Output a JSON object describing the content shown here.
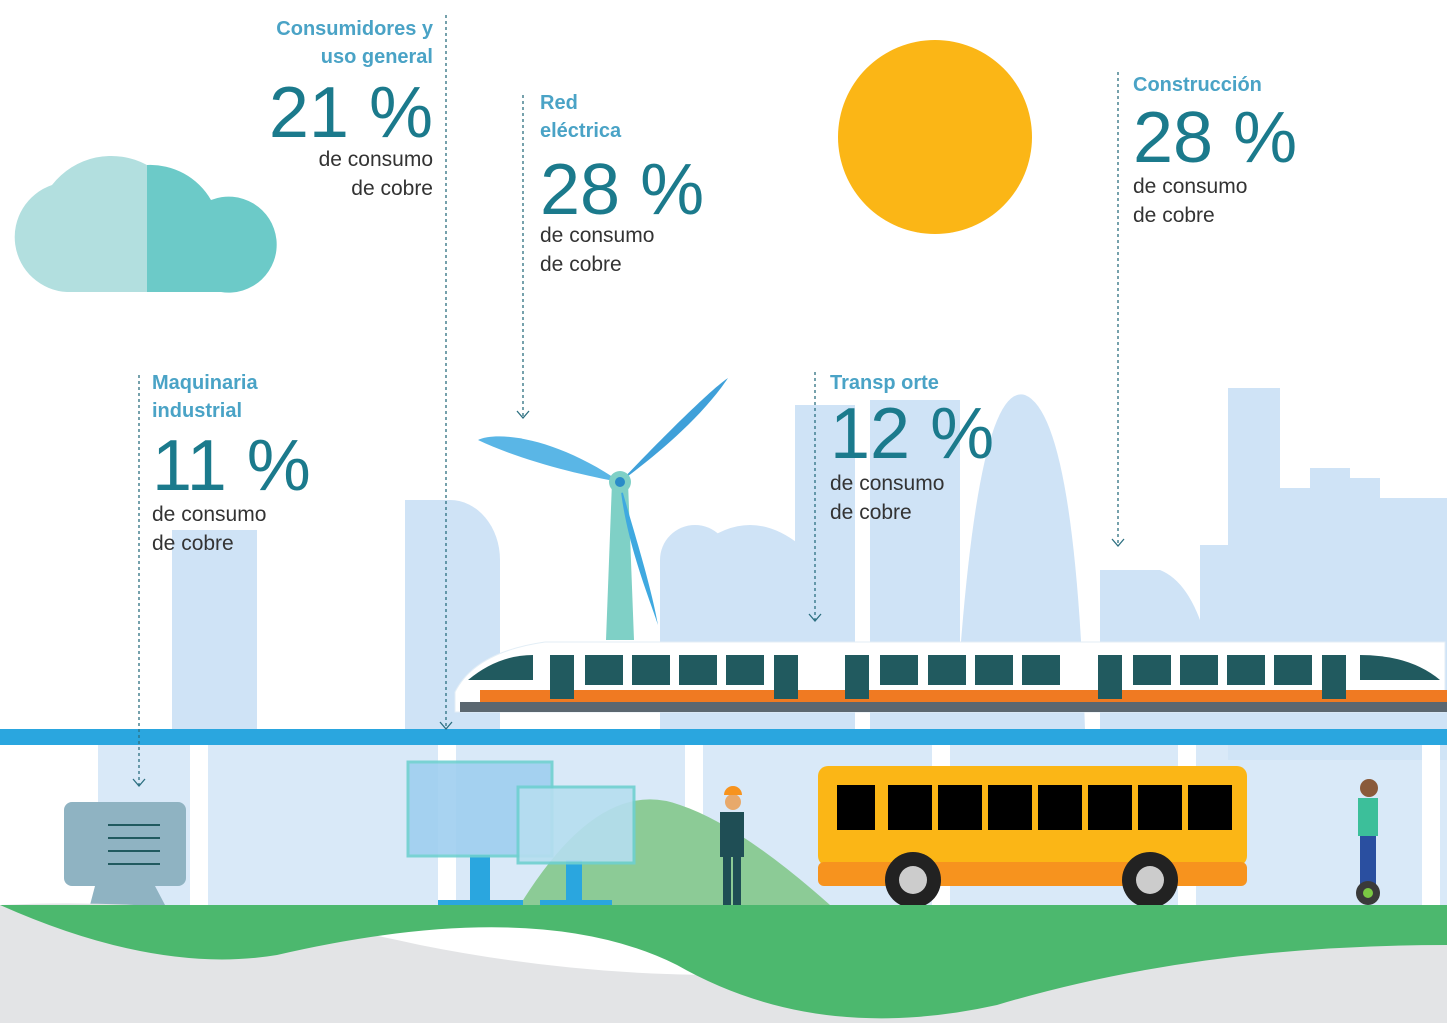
{
  "sectors": [
    {
      "label": [
        "Consumidores y",
        "uso general"
      ],
      "percent": "21 %",
      "caption": [
        "de consumo",
        "de cobre"
      ]
    },
    {
      "label": [
        "Red",
        "eléctrica"
      ],
      "percent": "28 %",
      "caption": [
        "de consumo",
        "de cobre"
      ]
    },
    {
      "label": [
        "Construcción"
      ],
      "percent": "28 %",
      "caption": [
        "de consumo",
        "de cobre"
      ]
    },
    {
      "label": [
        "Maquinaria",
        "industrial"
      ],
      "percent": "11 %",
      "caption": [
        "de consumo",
        "de cobre"
      ]
    },
    {
      "label": [
        "Transp orte"
      ],
      "percent": "12 %",
      "caption": [
        "de consumo",
        "de cobre"
      ]
    }
  ]
}
